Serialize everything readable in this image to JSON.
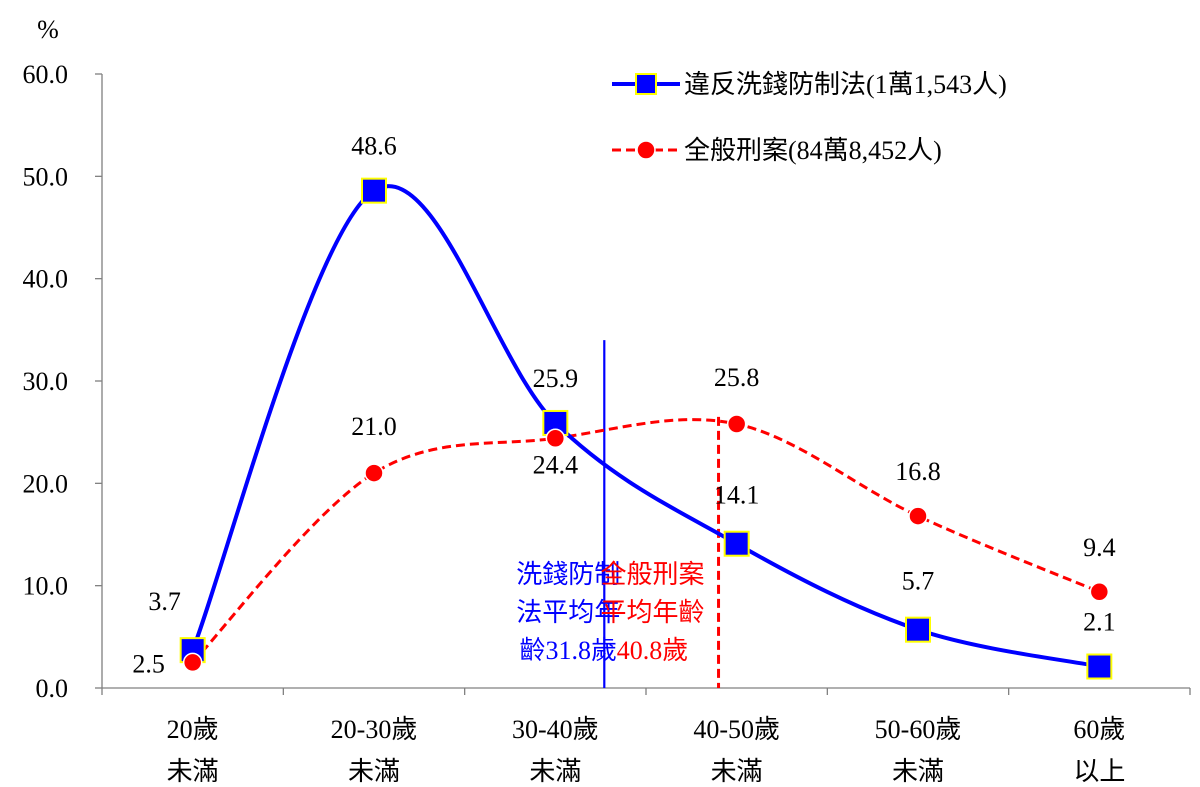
{
  "chart_data": {
    "type": "line",
    "unit_label": "%",
    "categories": [
      {
        "line1": "20歲",
        "line2": "未滿"
      },
      {
        "line1": "20-30歲",
        "line2": "未滿"
      },
      {
        "line1": "30-40歲",
        "line2": "未滿"
      },
      {
        "line1": "40-50歲",
        "line2": "未滿"
      },
      {
        "line1": "50-60歲",
        "line2": "未滿"
      },
      {
        "line1": "60歲",
        "line2": "以上"
      }
    ],
    "yticks": [
      "0.0",
      "10.0",
      "20.0",
      "30.0",
      "40.0",
      "50.0",
      "60.0"
    ],
    "ylim": [
      0,
      60
    ],
    "series": [
      {
        "name": "違反洗錢防制法(1萬1,543人)",
        "color": "#0000ff",
        "marker": "square",
        "marker_fill": "#0000ff",
        "marker_edge": "#ffff00",
        "line_style": "solid",
        "values": [
          3.7,
          48.6,
          25.9,
          14.1,
          5.7,
          2.1
        ],
        "labels": [
          "3.7",
          "48.6",
          "25.9",
          "14.1",
          "5.7",
          "2.1"
        ]
      },
      {
        "name": "全般刑案(84萬8,452人)",
        "color": "#ff0000",
        "marker": "circle",
        "marker_fill": "#ff0000",
        "marker_edge": "#ffffff",
        "line_style": "dashed",
        "values": [
          2.5,
          21.0,
          24.4,
          25.8,
          16.8,
          9.4
        ],
        "labels": [
          "2.5",
          "21.0",
          "24.4",
          "25.8",
          "16.8",
          "9.4"
        ]
      }
    ],
    "annotations": [
      {
        "series": 0,
        "x_value": 2.27,
        "y_value": 34.0,
        "lines": [
          "洗錢防制",
          "法平均年",
          "齡31.8歲"
        ]
      },
      {
        "series": 1,
        "x_value": 2.9,
        "y_value": 26.5,
        "lines": [
          "全般刑案",
          "平均年齡",
          "40.8歲"
        ]
      }
    ],
    "legend_position": "top-right"
  }
}
